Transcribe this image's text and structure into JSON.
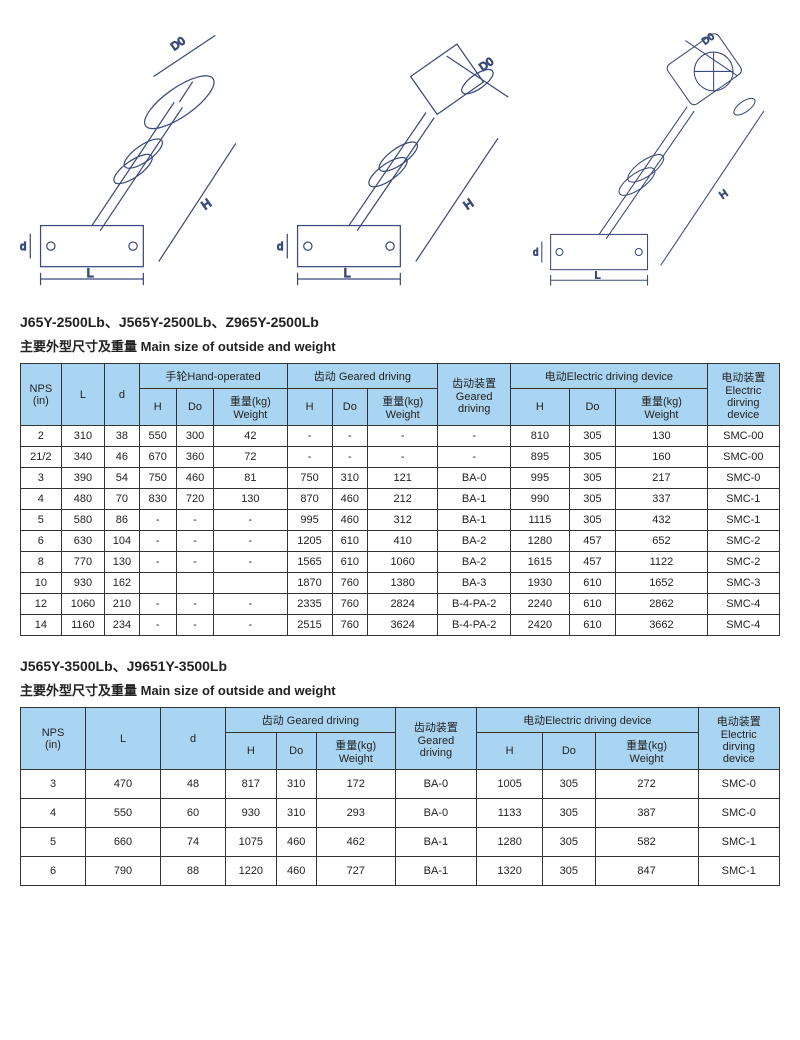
{
  "diagram_labels": {
    "H": "H",
    "L": "L",
    "d": "d",
    "D0": "D0"
  },
  "section1": {
    "title": "J65Y-2500Lb、J565Y-2500Lb、Z965Y-2500Lb",
    "subtitle": "主要外型尺寸及重量  Main size of outside and weight",
    "header": {
      "nps": "NPS\n(in)",
      "L": "L",
      "d": "d",
      "hand": "手轮Hand-operated",
      "geared": "齿动 Geared driving",
      "geared_dev": "齿动装置\nGeared\ndriving",
      "electric": "电动Electric driving device",
      "electric_dev": "电动装置\nElectric\ndirving\ndevice",
      "H": "H",
      "Do": "Do",
      "weight": "重量(kg)\nWeight"
    },
    "rows": [
      [
        "2",
        "310",
        "38",
        "550",
        "300",
        "42",
        "-",
        "-",
        "-",
        "-",
        "810",
        "305",
        "130",
        "SMC-00"
      ],
      [
        "21/2",
        "340",
        "46",
        "670",
        "360",
        "72",
        "-",
        "-",
        "-",
        "-",
        "895",
        "305",
        "160",
        "SMC-00"
      ],
      [
        "3",
        "390",
        "54",
        "750",
        "460",
        "81",
        "750",
        "310",
        "121",
        "BA-0",
        "995",
        "305",
        "217",
        "SMC-0"
      ],
      [
        "4",
        "480",
        "70",
        "830",
        "720",
        "130",
        "870",
        "460",
        "212",
        "BA-1",
        "990",
        "305",
        "337",
        "SMC-1"
      ],
      [
        "5",
        "580",
        "86",
        "-",
        "-",
        "-",
        "995",
        "460",
        "312",
        "BA-1",
        "1115",
        "305",
        "432",
        "SMC-1"
      ],
      [
        "6",
        "630",
        "104",
        "-",
        "-",
        "-",
        "1205",
        "610",
        "410",
        "BA-2",
        "1280",
        "457",
        "652",
        "SMC-2"
      ],
      [
        "8",
        "770",
        "130",
        "-",
        "-",
        "-",
        "1565",
        "610",
        "1060",
        "BA-2",
        "1615",
        "457",
        "1122",
        "SMC-2"
      ],
      [
        "10",
        "930",
        "162",
        "",
        "",
        "",
        "1870",
        "760",
        "1380",
        "BA-3",
        "1930",
        "610",
        "1652",
        "SMC-3"
      ],
      [
        "12",
        "1060",
        "210",
        "-",
        "-",
        "-",
        "2335",
        "760",
        "2824",
        "B-4-PA-2",
        "2240",
        "610",
        "2862",
        "SMC-4"
      ],
      [
        "14",
        "1160",
        "234",
        "-",
        "-",
        "-",
        "2515",
        "760",
        "3624",
        "B-4-PA-2",
        "2420",
        "610",
        "3662",
        "SMC-4"
      ]
    ]
  },
  "section2": {
    "title": "J565Y-3500Lb、J9651Y-3500Lb",
    "subtitle": "主要外型尺寸及重量  Main size of outside and weight",
    "header": {
      "nps": "NPS\n(in)",
      "L": "L",
      "d": "d",
      "geared": "齿动 Geared driving",
      "geared_dev": "齿动装置\nGeared\ndriving",
      "electric": "电动Electric driving device",
      "electric_dev": "电动装置\nElectric\ndirving\ndevice",
      "H": "H",
      "Do": "Do",
      "weight": "重量(kg)\nWeight"
    },
    "rows": [
      [
        "3",
        "470",
        "48",
        "817",
        "310",
        "172",
        "BA-0",
        "1005",
        "305",
        "272",
        "SMC-0"
      ],
      [
        "4",
        "550",
        "60",
        "930",
        "310",
        "293",
        "BA-0",
        "1133",
        "305",
        "387",
        "SMC-0"
      ],
      [
        "5",
        "660",
        "74",
        "1075",
        "460",
        "462",
        "BA-1",
        "1280",
        "305",
        "582",
        "SMC-1"
      ],
      [
        "6",
        "790",
        "88",
        "1220",
        "460",
        "727",
        "BA-1",
        "1320",
        "305",
        "847",
        "SMC-1"
      ]
    ]
  },
  "colors": {
    "header_bg": "#aad5f2",
    "border": "#333333",
    "line": "#3a4a7a"
  }
}
